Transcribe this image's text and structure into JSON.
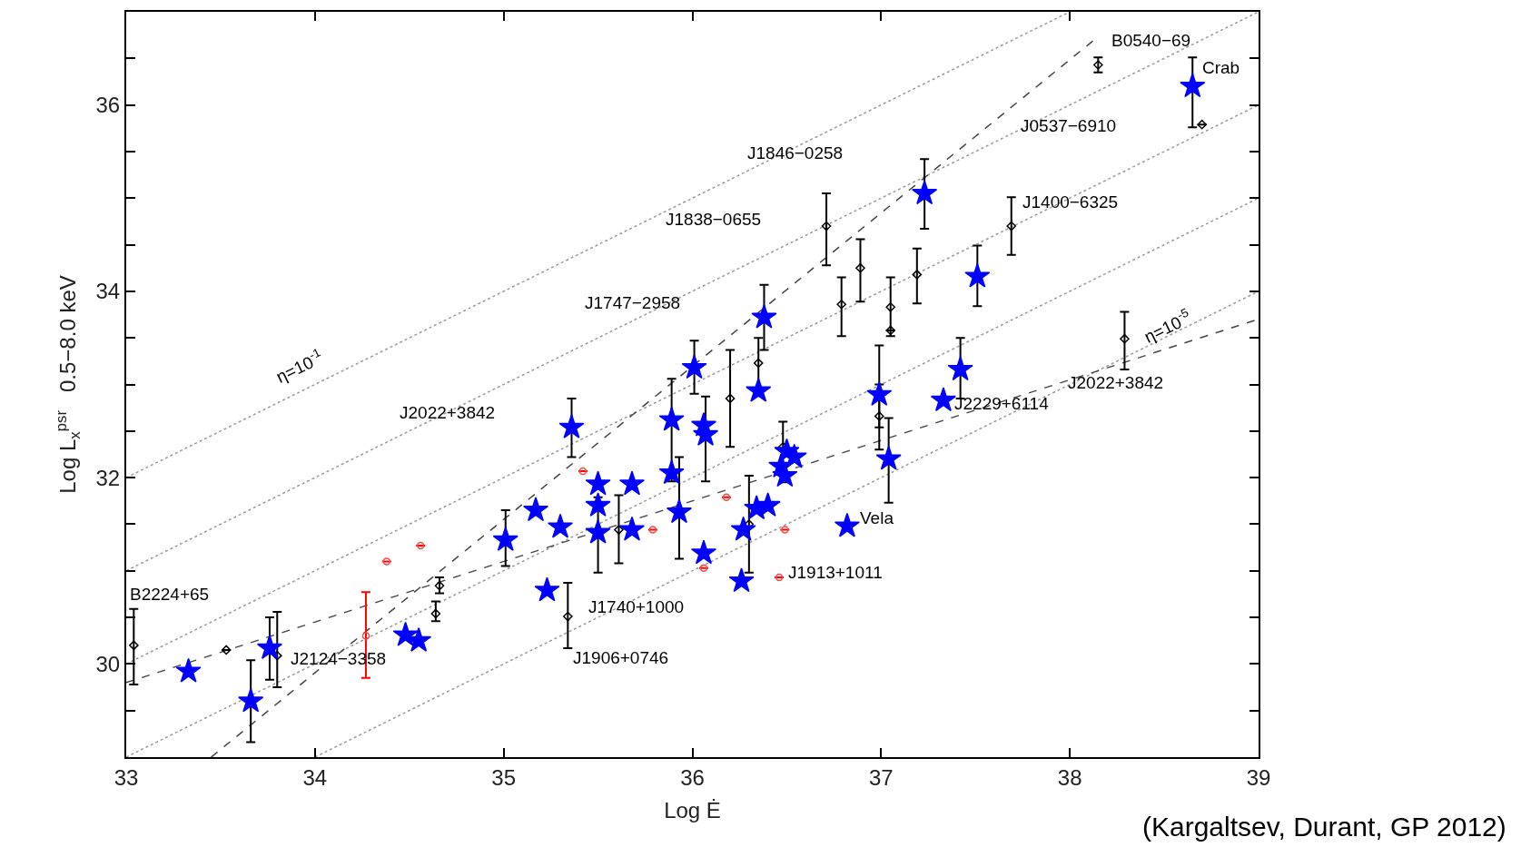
{
  "chart_data": {
    "type": "scatter",
    "xlabel": "Log Ė",
    "ylabel": "Log L$_{x}$$^{psr}$   0.5−8.0 keV",
    "xlim": [
      33,
      39
    ],
    "ylim": [
      29,
      37
    ],
    "xticks": [
      33,
      34,
      35,
      36,
      37,
      38,
      39
    ],
    "yticks": [
      {
        "value": 29.5,
        "label": null
      },
      30,
      {
        "value": 30.5,
        "label": null
      },
      {
        "value": 31,
        "label": null
      },
      {
        "value": 31.5,
        "label": null
      },
      32,
      {
        "value": 32.5,
        "label": null
      },
      {
        "value": 33,
        "label": null
      },
      {
        "value": 33.5,
        "label": null
      },
      34,
      {
        "value": 34.5,
        "label": null
      },
      {
        "value": 35,
        "label": null
      },
      {
        "value": 35.5,
        "label": null
      },
      36,
      {
        "value": 36.5,
        "label": null
      }
    ],
    "series": [
      {
        "type": "line",
        "color": "#999999",
        "line_style": "dotted",
        "x": [
          33,
          38
        ],
        "values": [
          32,
          37
        ]
      },
      {
        "type": "line",
        "color": "#999999",
        "line_style": "dotted",
        "x": [
          33,
          39
        ],
        "values": [
          31,
          37
        ]
      },
      {
        "type": "line",
        "color": "#999999",
        "line_style": "dotted",
        "x": [
          33,
          39
        ],
        "values": [
          30,
          36
        ]
      },
      {
        "type": "line",
        "color": "#999999",
        "line_style": "dotted",
        "x": [
          33,
          39
        ],
        "values": [
          29,
          35
        ]
      },
      {
        "type": "line",
        "color": "#999999",
        "line_style": "dotted",
        "x": [
          34,
          39
        ],
        "values": [
          29,
          34
        ]
      },
      {
        "type": "line",
        "color": "#444444",
        "line_style": "dashed",
        "x": [
          33.45,
          38.13
        ],
        "values": [
          29,
          36.7
        ]
      },
      {
        "type": "line",
        "color": "#444444",
        "line_style": "dashed",
        "x": [
          33,
          39
        ],
        "values": [
          29.8,
          33.7
        ]
      },
      {
        "marker": "circle",
        "color": "#ff4444",
        "x": [
          34.27,
          34.56,
          34.38,
          35.42,
          35.79,
          36.18,
          36.06,
          36.46,
          36.49
        ],
        "values": [
          30.3,
          31.27,
          31.1,
          32.07,
          31.44,
          31.79,
          31.03,
          30.93,
          31.44
        ],
        "errors": [
          [
            29.85,
            30.77
          ],
          null,
          null,
          null,
          null,
          null,
          null,
          null,
          null
        ]
      },
      {
        "marker": "diamond",
        "color": "#000000",
        "x": [
          33.04,
          33.53,
          33.8,
          34.64,
          34.66,
          35.34,
          35.61,
          36.2,
          36.35,
          36.3,
          36.71,
          36.79,
          36.89,
          37.19,
          37.05,
          37.05,
          36.99,
          37.69,
          38.29,
          38.15,
          38.7,
          36.48
        ],
        "values": [
          30.2,
          30.15,
          30.09,
          30.54,
          30.84,
          30.51,
          31.44,
          32.85,
          33.23,
          31.5,
          34.7,
          33.86,
          34.25,
          34.18,
          33.83,
          33.58,
          32.66,
          34.7,
          33.49,
          36.43,
          35.79,
          32.33
        ],
        "errors": [
          [
            29.78,
            30.59
          ],
          null,
          [
            29.75,
            30.56
          ],
          [
            30.46,
            30.67
          ],
          [
            30.76,
            30.93
          ],
          [
            30.17,
            30.87
          ],
          [
            31.08,
            31.81
          ],
          [
            32.33,
            33.37
          ],
          [
            32.95,
            33.5
          ],
          [
            30.98,
            32.02
          ],
          [
            34.28,
            35.05
          ],
          [
            33.52,
            34.15
          ],
          [
            33.89,
            34.56
          ],
          [
            33.87,
            34.46
          ],
          [
            33.52,
            34.15
          ],
          null,
          [
            32.3,
            33.0
          ],
          [
            34.39,
            35.01
          ],
          [
            33.16,
            33.78
          ],
          [
            36.35,
            36.51
          ],
          null,
          [
            31.95,
            32.6
          ]
        ]
      },
      {
        "marker": "star",
        "color": "#0000ff",
        "x": [
          33.33,
          33.66,
          33.76,
          34.48,
          34.55,
          35.01,
          35.17,
          35.3,
          35.36,
          35.23,
          35.5,
          35.5,
          35.5,
          35.68,
          35.68,
          35.89,
          35.89,
          35.93,
          36.01,
          36.06,
          36.07,
          36.06,
          36.26,
          36.27,
          36.34,
          36.4,
          36.38,
          36.35,
          36.47,
          36.5,
          36.54,
          36.49,
          36.82,
          36.99,
          37.04,
          37.23,
          37.33,
          37.42,
          37.51,
          38.65
        ],
        "values": [
          29.92,
          29.6,
          30.17,
          30.31,
          30.25,
          31.33,
          31.65,
          31.47,
          32.54,
          30.79,
          31.93,
          31.7,
          31.41,
          31.44,
          31.93,
          32.62,
          32.05,
          31.63,
          33.18,
          31.19,
          32.46,
          32.56,
          30.89,
          31.44,
          31.67,
          31.7,
          33.72,
          32.93,
          32.12,
          32.28,
          32.22,
          32.02,
          31.48,
          32.89,
          32.2,
          35.05,
          32.83,
          33.16,
          34.16,
          36.2
        ],
        "errors": [
          null,
          [
            29.16,
            30.04
          ],
          [
            29.83,
            30.5
          ],
          null,
          null,
          [
            31.05,
            31.65
          ],
          null,
          null,
          [
            32.22,
            32.85
          ],
          null,
          null,
          null,
          [
            30.98,
            31.79
          ],
          null,
          null,
          [
            31.96,
            33.06
          ],
          null,
          [
            31.13,
            32.22
          ],
          [
            32.9,
            33.47
          ],
          null,
          [
            31.96,
            32.87
          ],
          null,
          null,
          null,
          null,
          null,
          [
            33.37,
            34.07
          ],
          null,
          null,
          null,
          null,
          null,
          null,
          [
            32.54,
            33.42
          ],
          [
            31.73,
            32.64
          ],
          [
            34.67,
            35.42
          ],
          null,
          [
            32.85,
            33.5
          ],
          [
            33.84,
            34.49
          ],
          [
            35.76,
            36.51
          ]
        ]
      }
    ],
    "annotations": [
      "B0540−69",
      "Crab",
      "J0537−6910",
      "J1846−0258",
      "J1400−6325",
      "J1838−0655",
      "J1747−2958",
      "J2022+3842",
      "η=10$^{-1}$",
      "η=10$^{-5}$",
      "J2022+3842",
      "J2229+6114",
      "Vela",
      "J1913+1011",
      "B2224+65",
      "J1740+1000",
      "J2124−3358",
      "J1906+0746",
      "(Kargaltsev, Durant, GP 2012)"
    ]
  }
}
